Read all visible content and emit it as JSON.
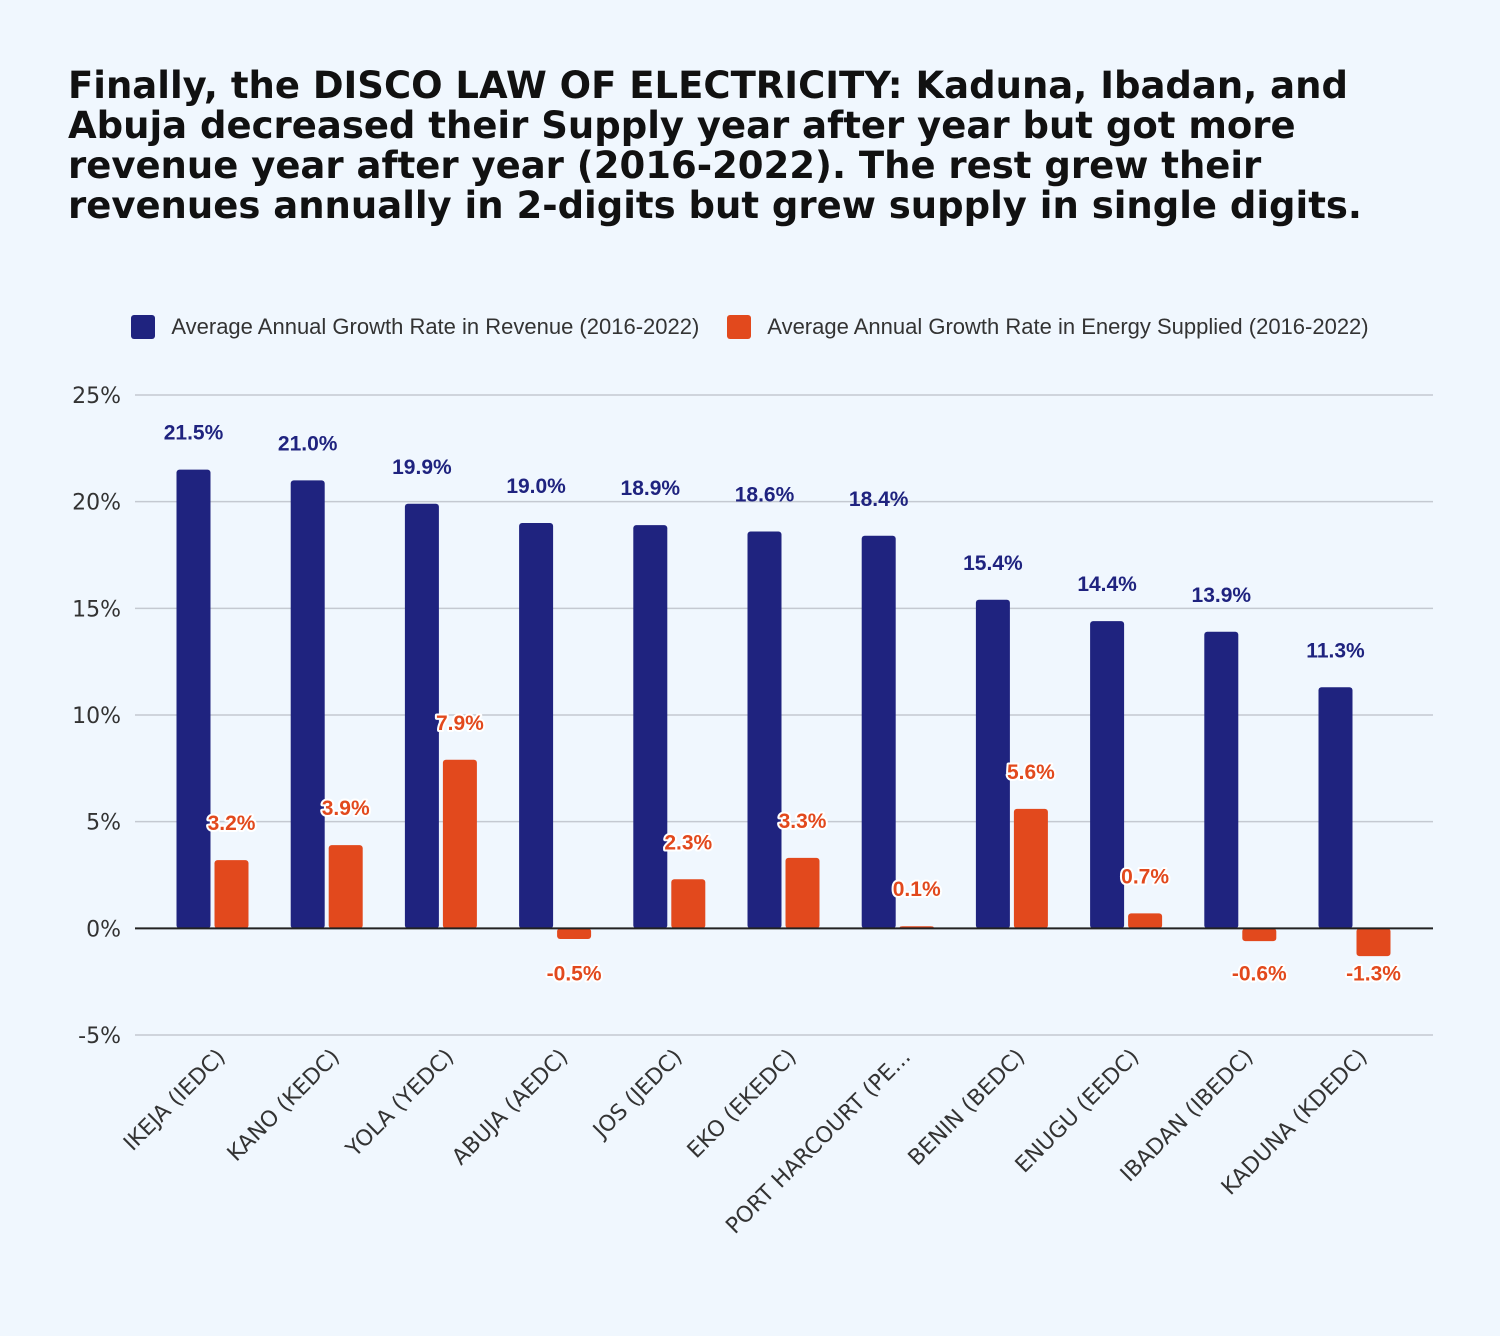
{
  "title": "Finally, the DISCO LAW OF ELECTRICITY: Kaduna, Ibadan, and Abuja decreased their Supply year after year but got more revenue year after year (2016-2022). The rest grew their revenues annually in 2-digits but grew supply in single digits.",
  "colors": {
    "revenue": "#1f237f",
    "supply": "#e2491d",
    "background": "#f0f7fe",
    "grid": "#c4c9d1",
    "axis": "#333333"
  },
  "chart_data": {
    "type": "bar",
    "categories": [
      "IKEJA (IEDC)",
      "KANO (KEDC)",
      "YOLA (YEDC)",
      "ABUJA (AEDC)",
      "JOS (JEDC)",
      "EKO (EKEDC)",
      "PORT HARCOURT (PE...",
      "BENIN (BEDC)",
      "ENUGU (EEDC)",
      "IBADAN (IBEDC)",
      "KADUNA (KDEDC)"
    ],
    "series": [
      {
        "name": "Average Annual Growth Rate in Revenue (2016-2022)",
        "color": "#1f237f",
        "values": [
          21.5,
          21.0,
          19.9,
          19.0,
          18.9,
          18.6,
          18.4,
          15.4,
          14.4,
          13.9,
          11.3
        ],
        "labels": [
          "21.5%",
          "21.0%",
          "19.9%",
          "19.0%",
          "18.9%",
          "18.6%",
          "18.4%",
          "15.4%",
          "14.4%",
          "13.9%",
          "11.3%"
        ]
      },
      {
        "name": "Average Annual Growth Rate in Energy Supplied (2016-2022)",
        "color": "#e2491d",
        "values": [
          3.2,
          3.9,
          7.9,
          -0.5,
          2.3,
          3.3,
          0.1,
          5.6,
          0.7,
          -0.6,
          -1.3
        ],
        "labels": [
          "3.2%",
          "3.9%",
          "7.9%",
          "-0.5%",
          "2.3%",
          "3.3%",
          "0.1%",
          "5.6%",
          "0.7%",
          "-0.6%",
          "-1.3%"
        ]
      }
    ],
    "y_ticks": [
      "25%",
      "20%",
      "15%",
      "10%",
      "5%",
      "0%",
      "-5%"
    ],
    "y_tick_values": [
      25,
      20,
      15,
      10,
      5,
      0,
      -5
    ],
    "ylim": [
      -5,
      25
    ],
    "grid": true,
    "legend_position": "top"
  }
}
